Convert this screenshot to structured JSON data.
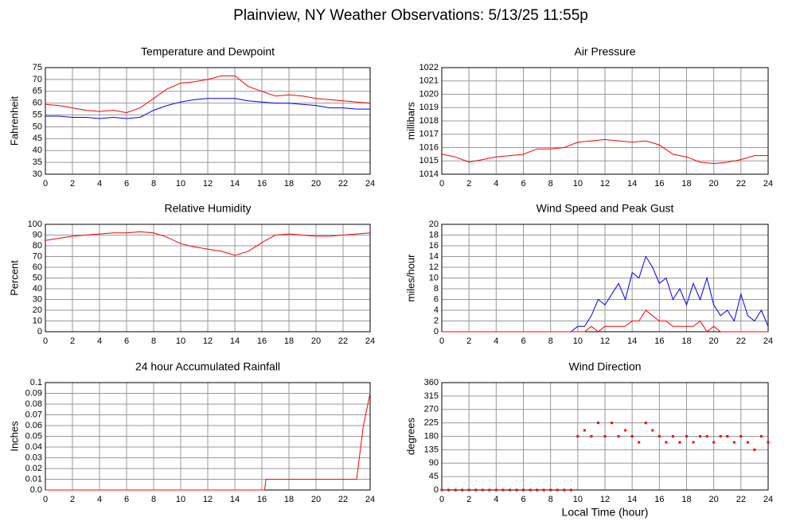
{
  "title": "Plainview, NY Weather Observations: 5/13/25 11:55p",
  "chart_data": [
    {
      "type": "line",
      "title": "Temperature and Dewpoint",
      "y_label": "Fahrenheit",
      "x": [
        0,
        1,
        2,
        3,
        4,
        5,
        6,
        7,
        8,
        9,
        10,
        11,
        12,
        13,
        14,
        15,
        16,
        17,
        18,
        19,
        20,
        21,
        22,
        23,
        24
      ],
      "series": [
        {
          "color": "#ff0000",
          "values": [
            59.5,
            59,
            58,
            57,
            56.5,
            57,
            56,
            58,
            62,
            66,
            68.5,
            69,
            70,
            71.5,
            71.5,
            67,
            65,
            63,
            63.5,
            63,
            62,
            61.5,
            61,
            60.5,
            60
          ]
        },
        {
          "color": "#0000ff",
          "values": [
            54.5,
            54.5,
            54,
            54,
            53.5,
            54,
            53.5,
            54,
            57,
            59,
            60.5,
            61.5,
            62,
            62,
            62,
            61,
            60.5,
            60,
            60,
            59.5,
            59,
            58,
            58,
            57.5,
            57.5
          ]
        }
      ],
      "xlim": [
        0,
        24
      ],
      "xticks": [
        0,
        2,
        4,
        6,
        8,
        10,
        12,
        14,
        16,
        18,
        20,
        22,
        24
      ],
      "ylim": [
        30,
        75
      ],
      "yticks": [
        30,
        35,
        40,
        45,
        50,
        55,
        60,
        65,
        70,
        75
      ],
      "grid": true
    },
    {
      "type": "line",
      "title": "Air Pressure",
      "y_label": "millibars",
      "x": [
        0,
        1,
        2,
        3,
        4,
        5,
        6,
        7,
        8,
        9,
        10,
        11,
        12,
        13,
        14,
        15,
        16,
        17,
        18,
        19,
        20,
        21,
        22,
        23,
        24
      ],
      "series": [
        {
          "color": "#ff0000",
          "values": [
            1015.5,
            1015.3,
            1014.9,
            1015.1,
            1015.3,
            1015.4,
            1015.5,
            1015.9,
            1015.9,
            1016.0,
            1016.4,
            1016.5,
            1016.6,
            1016.5,
            1016.4,
            1016.5,
            1016.2,
            1015.5,
            1015.3,
            1014.9,
            1014.8,
            1014.9,
            1015.1,
            1015.4,
            1015.4
          ]
        }
      ],
      "xlim": [
        0,
        24
      ],
      "xticks": [
        0,
        2,
        4,
        6,
        8,
        10,
        12,
        14,
        16,
        18,
        20,
        22,
        24
      ],
      "ylim": [
        1014,
        1022
      ],
      "yticks": [
        1014,
        1015,
        1016,
        1017,
        1018,
        1019,
        1020,
        1021,
        1022
      ],
      "grid": true
    },
    {
      "type": "line",
      "title": "Relative Humidity",
      "y_label": "Percent",
      "x": [
        0,
        1,
        2,
        3,
        4,
        5,
        6,
        7,
        8,
        9,
        10,
        11,
        12,
        13,
        14,
        15,
        16,
        17,
        18,
        19,
        20,
        21,
        22,
        23,
        24
      ],
      "series": [
        {
          "color": "#ff0000",
          "values": [
            85,
            87,
            89,
            90,
            91,
            92,
            92,
            93,
            92,
            88,
            82,
            79,
            77,
            75,
            71,
            75,
            83,
            90,
            91,
            90,
            89,
            89,
            90,
            91,
            92
          ]
        }
      ],
      "xlim": [
        0,
        24
      ],
      "xticks": [
        0,
        2,
        4,
        6,
        8,
        10,
        12,
        14,
        16,
        18,
        20,
        22,
        24
      ],
      "ylim": [
        0,
        100
      ],
      "yticks": [
        0,
        10,
        20,
        30,
        40,
        50,
        60,
        70,
        80,
        90,
        100
      ],
      "grid": true
    },
    {
      "type": "line",
      "title": "Wind Speed and Peak Gust",
      "y_label": "miles/hour",
      "x": [
        0,
        0.5,
        1,
        1.5,
        2,
        2.5,
        3,
        3.5,
        4,
        4.5,
        5,
        5.5,
        6,
        6.5,
        7,
        7.5,
        8,
        8.5,
        9,
        9.5,
        10,
        10.5,
        11,
        11.5,
        12,
        12.5,
        13,
        13.5,
        14,
        14.5,
        15,
        15.5,
        16,
        16.5,
        17,
        17.5,
        18,
        18.5,
        19,
        19.5,
        20,
        20.5,
        21,
        21.5,
        22,
        22.5,
        23,
        23.5,
        24
      ],
      "series": [
        {
          "color": "#0000ff",
          "values": [
            0,
            0,
            0,
            0,
            0,
            0,
            0,
            0,
            0,
            0,
            0,
            0,
            0,
            0,
            0,
            0,
            0,
            0,
            0,
            0,
            1,
            1,
            3,
            6,
            5,
            7,
            9,
            6,
            11,
            10,
            14,
            12,
            9,
            10,
            6,
            8,
            5,
            9,
            6,
            10,
            5,
            3,
            4,
            2,
            7,
            3,
            2,
            4,
            1
          ]
        },
        {
          "color": "#ff0000",
          "values": [
            0,
            0,
            0,
            0,
            0,
            0,
            0,
            0,
            0,
            0,
            0,
            0,
            0,
            0,
            0,
            0,
            0,
            0,
            0,
            0,
            0,
            0,
            1,
            0,
            1,
            1,
            1,
            1,
            2,
            2,
            4,
            3,
            2,
            2,
            1,
            1,
            1,
            1,
            2,
            0,
            1,
            0,
            0,
            0,
            0,
            0,
            0,
            0,
            0
          ]
        }
      ],
      "xlim": [
        0,
        24
      ],
      "xticks": [
        0,
        2,
        4,
        6,
        8,
        10,
        12,
        14,
        16,
        18,
        20,
        22,
        24
      ],
      "ylim": [
        0,
        20
      ],
      "yticks": [
        0,
        2,
        4,
        6,
        8,
        10,
        12,
        14,
        16,
        18,
        20
      ],
      "grid": true
    },
    {
      "type": "line",
      "title": "24 hour Accumulated Rainfall",
      "y_label": "Inches",
      "x": [
        0,
        16.2,
        16.3,
        23,
        23.5,
        24
      ],
      "series": [
        {
          "color": "#ff0000",
          "values": [
            0,
            0,
            0.01,
            0.01,
            0.06,
            0.09
          ]
        }
      ],
      "xlim": [
        0,
        24
      ],
      "xticks": [
        0,
        2,
        4,
        6,
        8,
        10,
        12,
        14,
        16,
        18,
        20,
        22,
        24
      ],
      "ylim": [
        0,
        0.1
      ],
      "yticks": [
        {
          "value": 0,
          "label": "0.0"
        },
        0.01,
        0.02,
        0.03,
        0.04,
        0.05,
        0.06,
        0.07,
        0.08,
        0.09,
        0.1
      ],
      "grid": true
    },
    {
      "type": "scatter",
      "title": "Wind Direction",
      "y_label": "degrees",
      "x_label": "Local Time (hour)",
      "x": [
        0,
        0.5,
        1,
        1.5,
        2,
        2.5,
        3,
        3.5,
        4,
        4.5,
        5,
        5.5,
        6,
        6.5,
        7,
        7.5,
        8,
        8.5,
        9,
        9.5,
        10,
        10.5,
        11,
        11.5,
        12,
        12.5,
        13,
        13.5,
        14,
        14.5,
        15,
        15.5,
        16,
        16.5,
        17,
        17.5,
        18,
        18.5,
        19,
        19.5,
        20,
        20.5,
        21,
        21.5,
        22,
        22.5,
        23,
        23.5,
        24
      ],
      "series": [
        {
          "color": "#ff0000",
          "values": [
            0,
            0,
            0,
            0,
            0,
            0,
            0,
            0,
            0,
            0,
            0,
            0,
            0,
            0,
            0,
            0,
            0,
            0,
            0,
            0,
            180,
            200,
            180,
            225,
            180,
            225,
            180,
            200,
            180,
            160,
            225,
            200,
            180,
            160,
            180,
            160,
            180,
            160,
            180,
            180,
            160,
            180,
            180,
            160,
            180,
            160,
            135,
            180,
            160
          ]
        }
      ],
      "xlim": [
        0,
        24
      ],
      "xticks": [
        0,
        2,
        4,
        6,
        8,
        10,
        12,
        14,
        16,
        18,
        20,
        22,
        24
      ],
      "ylim": [
        0,
        360
      ],
      "yticks": [
        0,
        45,
        90,
        135,
        180,
        225,
        270,
        315,
        360
      ],
      "grid": true
    }
  ]
}
